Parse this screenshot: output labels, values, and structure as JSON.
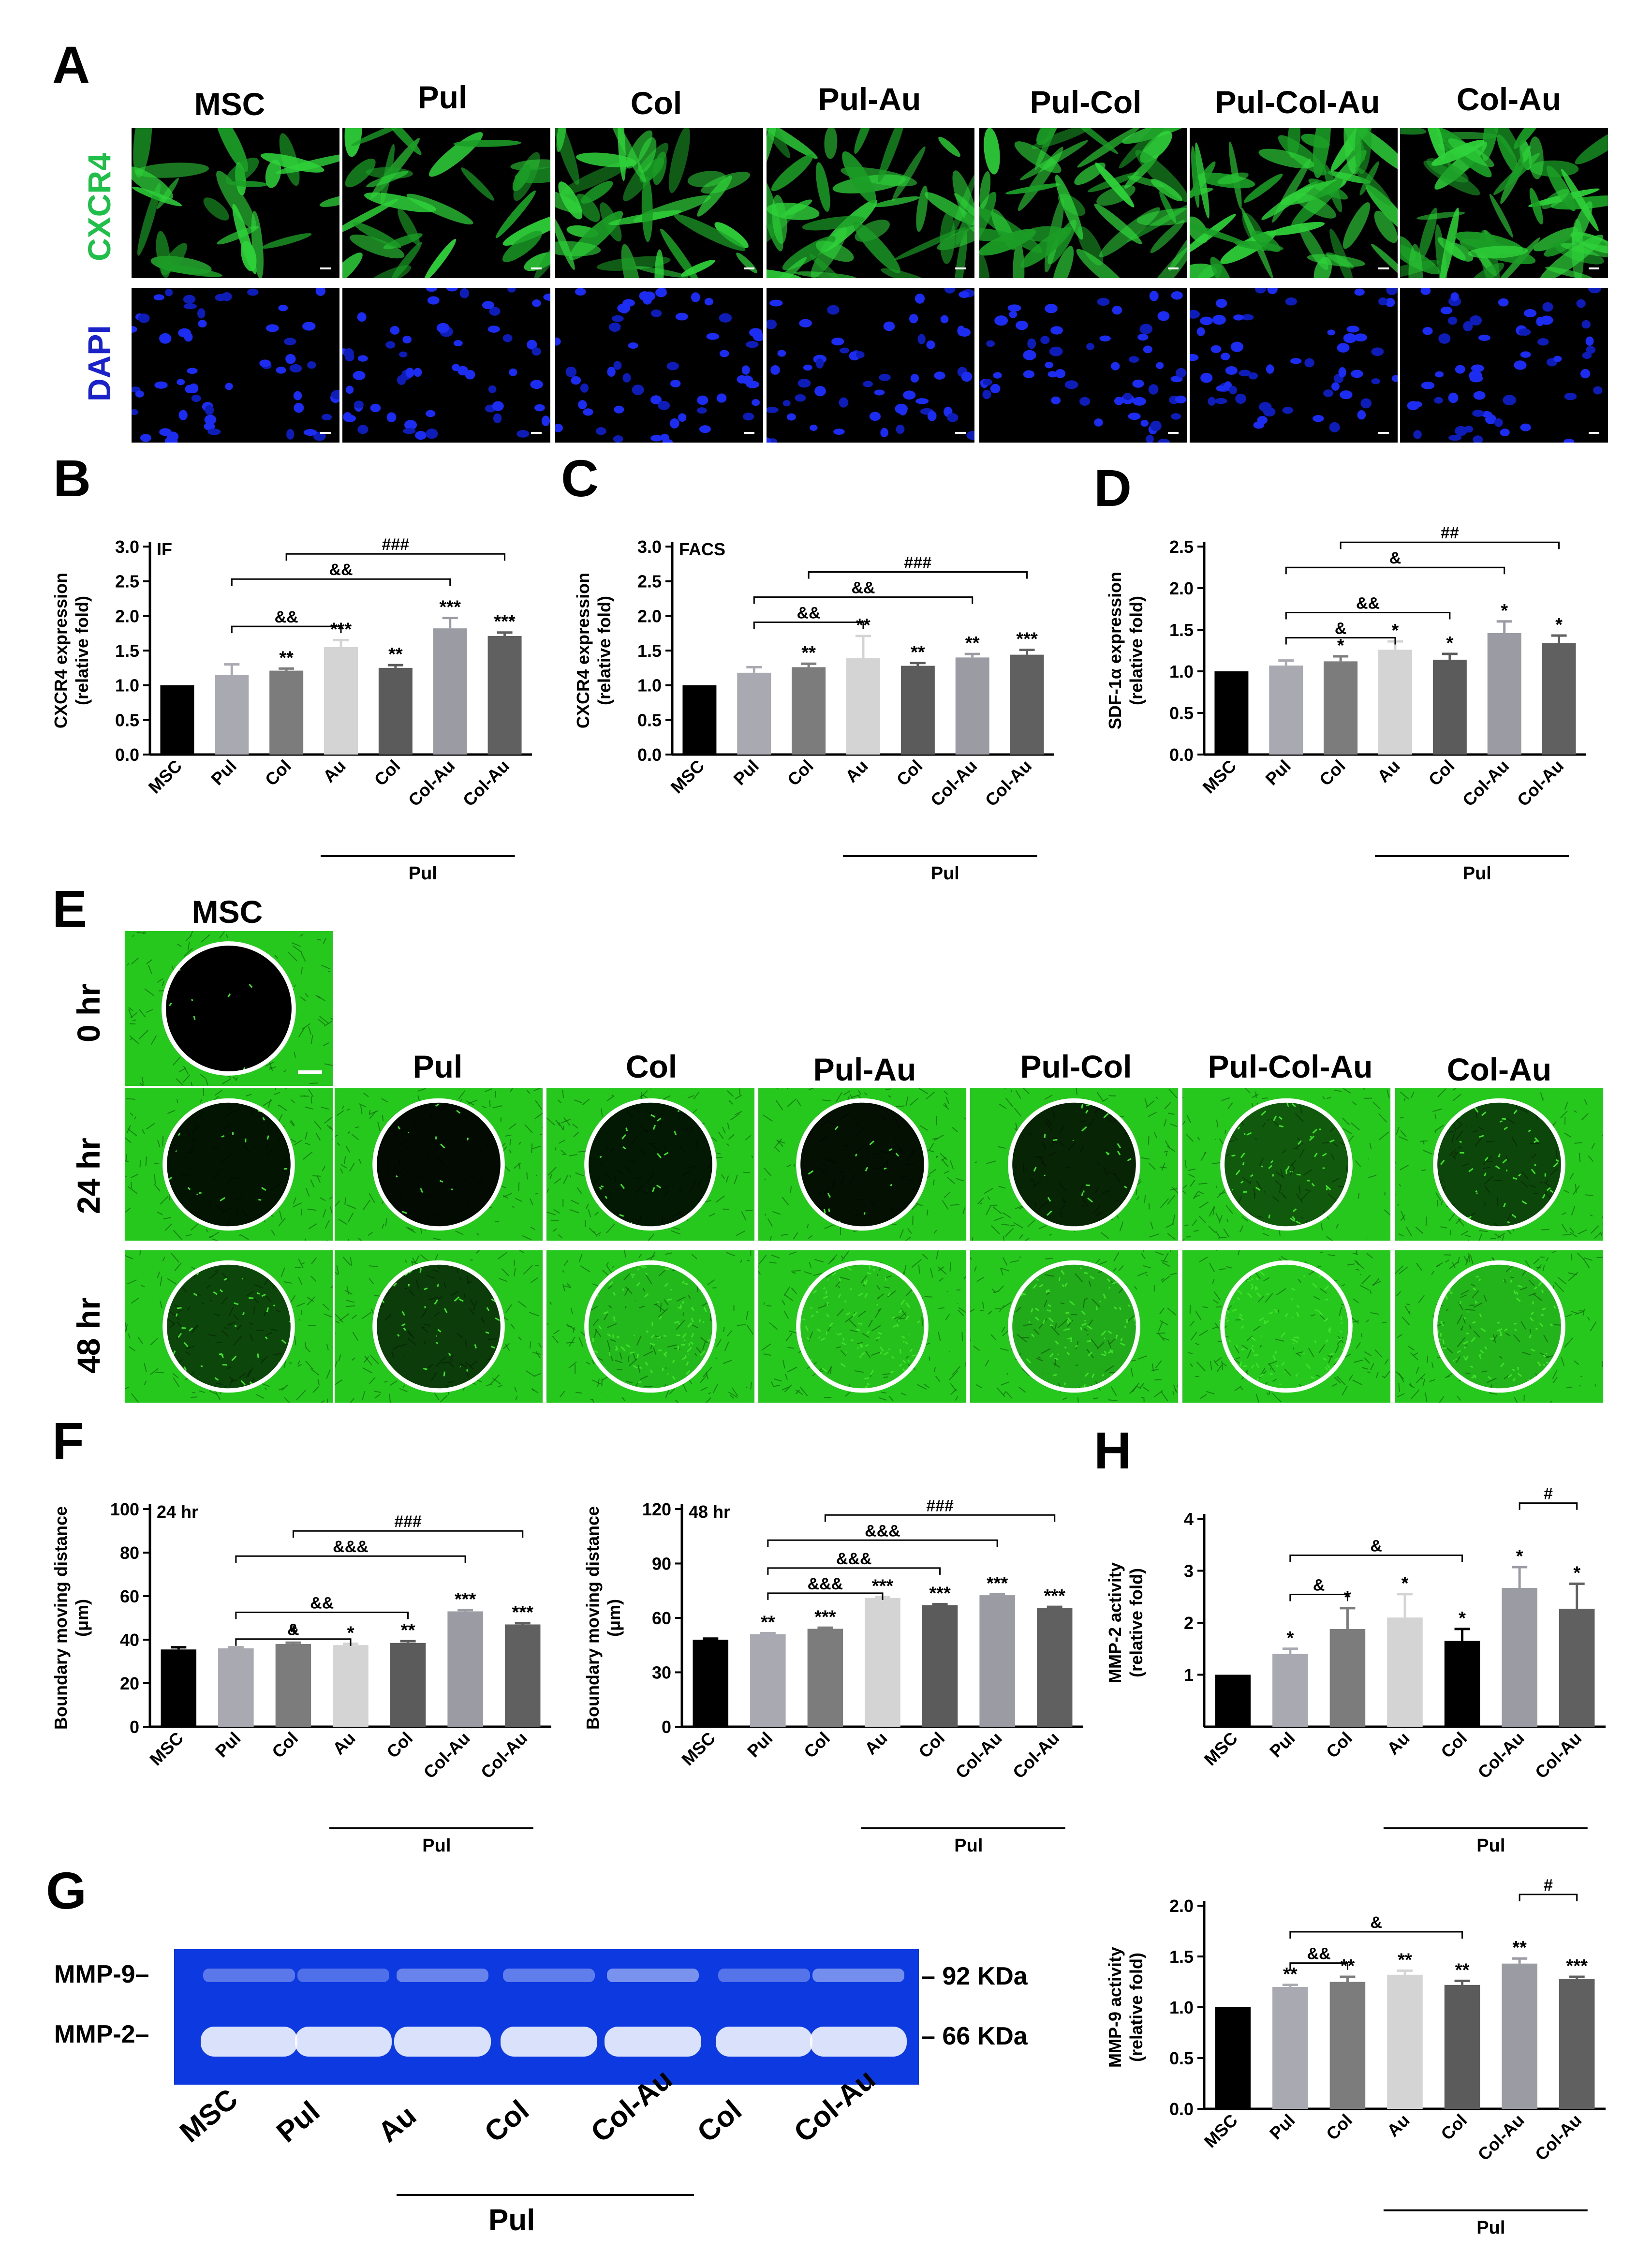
{
  "panel_letters": {
    "a": "A",
    "b": "B",
    "c": "C",
    "d": "D",
    "e": "E",
    "f": "F",
    "g": "G",
    "h": "H"
  },
  "panel_a": {
    "columns": [
      "MSC",
      "Pul",
      "Col",
      "Pul-Au",
      "Pul-Col",
      "Pul-Col-Au",
      "Col-Au"
    ],
    "rows": [
      "CXCR4",
      "DAPI"
    ],
    "row_colors": {
      "CXCR4": "#1fbf4a",
      "DAPI": "#1a22c8"
    }
  },
  "panel_e": {
    "msc_label": "MSC",
    "columns": [
      "Pul",
      "Col",
      "Pul-Au",
      "Pul-Col",
      "Pul-Col-Au",
      "Col-Au"
    ],
    "rows": [
      "0 hr",
      "24 hr",
      "48 hr"
    ]
  },
  "panel_g": {
    "band_labels": [
      "MMP-9–",
      "MMP-2–"
    ],
    "marker_labels": [
      "– 92 KDa",
      "– 66 KDa"
    ],
    "lanes": [
      "MSC",
      "Pul",
      "Au",
      "Col",
      "Col-Au",
      "Col",
      "Col-Au"
    ],
    "pul_label": "Pul",
    "mmp9_band_intensity": [
      0.35,
      0.25,
      0.45,
      0.4,
      0.6,
      0.3,
      0.55
    ],
    "mmp2_band_intensity": [
      1,
      1,
      1,
      1,
      1,
      1,
      1
    ]
  },
  "chart_data": [
    {
      "id": "B",
      "type": "bar",
      "annotation": "IF",
      "ylabel": "CXCR4 expression\n(relative fold)",
      "categories": [
        "MSC",
        "Pul",
        "Col",
        "Au",
        "Col",
        "Col-Au",
        "Col-Au"
      ],
      "values": [
        1.0,
        1.15,
        1.21,
        1.55,
        1.25,
        1.82,
        1.71
      ],
      "errors": [
        0,
        0.15,
        0.03,
        0.1,
        0.04,
        0.15,
        0.05
      ],
      "sig": [
        "",
        "",
        "**",
        "***",
        "**",
        "***",
        "***"
      ],
      "ylim": [
        0,
        3.0
      ],
      "yticks": [
        0.0,
        0.5,
        1.0,
        1.5,
        2.0,
        2.5,
        3.0
      ],
      "brackets": [
        [
          "&&",
          1,
          3
        ],
        [
          "&&",
          1,
          5
        ],
        [
          "###",
          2,
          6
        ]
      ],
      "group_label": "Pul",
      "group_span": [
        3,
        6
      ],
      "colors": [
        "#000000",
        "#a9a9b2",
        "#7c7c7c",
        "#d4d4d4",
        "#5b5b5b",
        "#9b9ba3",
        "#606060"
      ]
    },
    {
      "id": "C",
      "type": "bar",
      "annotation": "FACS",
      "ylabel": "CXCR4 expression\n(relative fold)",
      "categories": [
        "MSC",
        "Pul",
        "Col",
        "Au",
        "Col",
        "Col-Au",
        "Col-Au"
      ],
      "values": [
        1.0,
        1.18,
        1.26,
        1.39,
        1.28,
        1.4,
        1.44
      ],
      "errors": [
        0,
        0.08,
        0.05,
        0.32,
        0.04,
        0.05,
        0.07
      ],
      "sig": [
        "",
        "",
        "**",
        "**",
        "**",
        "**",
        "***"
      ],
      "ylim": [
        0,
        3.0
      ],
      "yticks": [
        0.0,
        0.5,
        1.0,
        1.5,
        2.0,
        2.5,
        3.0
      ],
      "brackets": [
        [
          "&&",
          1,
          3
        ],
        [
          "&&",
          1,
          5
        ],
        [
          "###",
          2,
          6
        ]
      ],
      "group_label": "Pul",
      "group_span": [
        3,
        6
      ],
      "colors": [
        "#000000",
        "#a9a9b2",
        "#7c7c7c",
        "#d4d4d4",
        "#5b5b5b",
        "#9b9ba3",
        "#606060"
      ]
    },
    {
      "id": "D",
      "type": "bar",
      "annotation": "",
      "ylabel": "SDF-1α expression\n(relative fold)",
      "categories": [
        "MSC",
        "Pul",
        "Col",
        "Au",
        "Col",
        "Col-Au",
        "Col-Au"
      ],
      "values": [
        1.0,
        1.07,
        1.12,
        1.26,
        1.14,
        1.46,
        1.34
      ],
      "errors": [
        0,
        0.06,
        0.06,
        0.1,
        0.07,
        0.14,
        0.09
      ],
      "sig": [
        "",
        "",
        "*",
        "*",
        "*",
        "*",
        "*"
      ],
      "ylim": [
        0,
        2.5
      ],
      "yticks": [
        0.0,
        0.5,
        1.0,
        1.5,
        2.0,
        2.5
      ],
      "brackets": [
        [
          "&",
          1,
          3
        ],
        [
          "&&",
          1,
          4
        ],
        [
          "&",
          1,
          5
        ],
        [
          "##",
          2,
          6
        ]
      ],
      "group_label": "Pul",
      "group_span": [
        3,
        6
      ],
      "colors": [
        "#000000",
        "#a9a9b2",
        "#7c7c7c",
        "#d4d4d4",
        "#5b5b5b",
        "#9b9ba3",
        "#606060"
      ]
    },
    {
      "id": "F1",
      "type": "bar",
      "annotation": "24 hr",
      "ylabel": "Boundary moving distance\n(μm)",
      "categories": [
        "MSC",
        "Pul",
        "Col",
        "Au",
        "Col",
        "Col-Au",
        "Col-Au"
      ],
      "values": [
        35.5,
        36,
        38,
        37.5,
        38.5,
        53,
        47
      ],
      "errors": [
        1,
        0.5,
        0.6,
        0.6,
        0.8,
        0.6,
        0.6
      ],
      "sig": [
        "",
        "",
        "*",
        "*",
        "**",
        "***",
        "***"
      ],
      "ylim": [
        0,
        100
      ],
      "yticks": [
        0,
        20,
        40,
        60,
        80,
        100
      ],
      "brackets": [
        [
          "&",
          1,
          3
        ],
        [
          "&&",
          1,
          4
        ],
        [
          "&&&",
          1,
          5
        ],
        [
          "###",
          2,
          6
        ]
      ],
      "group_label": "Pul",
      "group_span": [
        3,
        6
      ],
      "colors": [
        "#000000",
        "#a9a9b2",
        "#7c7c7c",
        "#d4d4d4",
        "#5b5b5b",
        "#9b9ba3",
        "#606060"
      ]
    },
    {
      "id": "F2",
      "type": "bar",
      "annotation": "48 hr",
      "ylabel": "Boundary moving distance\n(μm)",
      "categories": [
        "MSC",
        "Pul",
        "Col",
        "Au",
        "Col",
        "Col-Au",
        "Col-Au"
      ],
      "values": [
        48,
        51,
        54,
        71,
        67,
        72.5,
        65.5
      ],
      "errors": [
        0.6,
        0.6,
        0.6,
        0.6,
        0.6,
        0.6,
        0.6
      ],
      "sig": [
        "",
        "**",
        "***",
        "***",
        "***",
        "***",
        "***"
      ],
      "ylim": [
        0,
        120
      ],
      "yticks": [
        0,
        30,
        60,
        90,
        120
      ],
      "brackets": [
        [
          "&&&",
          1,
          3
        ],
        [
          "&&&",
          1,
          4
        ],
        [
          "&&&",
          1,
          5
        ],
        [
          "###",
          2,
          6
        ]
      ],
      "group_label": "Pul",
      "group_span": [
        3,
        6
      ],
      "colors": [
        "#000000",
        "#a9a9b2",
        "#7c7c7c",
        "#d4d4d4",
        "#5b5b5b",
        "#9b9ba3",
        "#606060"
      ]
    },
    {
      "id": "H1",
      "type": "bar",
      "annotation": "",
      "ylabel": "MMP-2 activity\n(relative fold)",
      "categories": [
        "MSC",
        "Pul",
        "Col",
        "Au",
        "Col",
        "Col-Au",
        "Col-Au"
      ],
      "values": [
        1.0,
        1.4,
        1.88,
        2.1,
        1.65,
        2.67,
        2.27
      ],
      "errors": [
        0,
        0.1,
        0.4,
        0.45,
        0.23,
        0.4,
        0.48
      ],
      "sig": [
        "",
        "*",
        "*",
        "*",
        "*",
        "*",
        "*"
      ],
      "ylim": [
        0,
        4
      ],
      "yticks": [
        1,
        2,
        3,
        4
      ],
      "brackets": [
        [
          "&",
          1,
          2
        ],
        [
          "&",
          1,
          4
        ],
        [
          "#",
          5,
          6
        ]
      ],
      "group_label": "Pul",
      "group_span": [
        3,
        6
      ],
      "colors": [
        "#000000",
        "#a9a9b2",
        "#7c7c7c",
        "#d4d4d4",
        "#000000",
        "#9b9ba3",
        "#606060"
      ]
    },
    {
      "id": "H2",
      "type": "bar",
      "annotation": "",
      "ylabel": "MMP-9 activity\n(relative fold)",
      "categories": [
        "MSC",
        "Pul",
        "Col",
        "Au",
        "Col",
        "Col-Au",
        "Col-Au"
      ],
      "values": [
        1.0,
        1.2,
        1.25,
        1.32,
        1.22,
        1.43,
        1.28
      ],
      "errors": [
        0,
        0.02,
        0.05,
        0.04,
        0.04,
        0.05,
        0.02
      ],
      "sig": [
        "",
        "**",
        "**",
        "**",
        "**",
        "**",
        "***"
      ],
      "ylim": [
        0,
        2.0
      ],
      "yticks": [
        0.0,
        0.5,
        1.0,
        1.5,
        2.0
      ],
      "brackets": [
        [
          "&&",
          1,
          2
        ],
        [
          "&",
          1,
          4
        ],
        [
          "#",
          5,
          6
        ]
      ],
      "group_label": "Pul",
      "group_span": [
        3,
        6
      ],
      "colors": [
        "#000000",
        "#a9a9b2",
        "#7c7c7c",
        "#d4d4d4",
        "#5b5b5b",
        "#9b9ba3",
        "#606060"
      ]
    }
  ]
}
